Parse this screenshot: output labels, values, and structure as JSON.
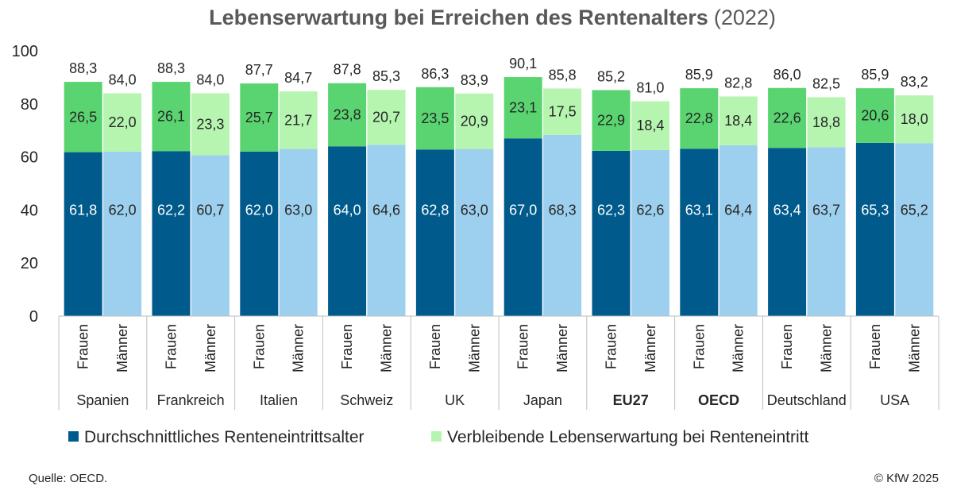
{
  "chart_data": {
    "type": "bar",
    "stacked": true,
    "title": "Lebenserwartung bei Erreichen des Rentenalters",
    "title_year": "(2022)",
    "ylim": [
      0,
      100
    ],
    "yticks": [
      0,
      20,
      40,
      60,
      80,
      100
    ],
    "groups": [
      "Spanien",
      "Frankreich",
      "Italien",
      "Schweiz",
      "UK",
      "Japan",
      "EU27",
      "OECD",
      "Deutschland",
      "USA"
    ],
    "bold_groups": [
      "EU27",
      "OECD"
    ],
    "subcategories": [
      "Frauen",
      "Männer"
    ],
    "series": [
      {
        "name": "Durchschnittliches Renteneintrittsalter",
        "values": [
          [
            61.8,
            62.0
          ],
          [
            62.2,
            60.7
          ],
          [
            62.0,
            63.0
          ],
          [
            64.0,
            64.6
          ],
          [
            62.8,
            63.0
          ],
          [
            67.0,
            68.3
          ],
          [
            62.3,
            62.6
          ],
          [
            63.1,
            64.4
          ],
          [
            63.4,
            63.7
          ],
          [
            65.3,
            65.2
          ]
        ],
        "labels": [
          [
            "61,8",
            "62,0"
          ],
          [
            "62,2",
            "60,7"
          ],
          [
            "62,0",
            "63,0"
          ],
          [
            "64,0",
            "64,6"
          ],
          [
            "62,8",
            "63,0"
          ],
          [
            "67,0",
            "68,3"
          ],
          [
            "62,3",
            "62,6"
          ],
          [
            "63,1",
            "64,4"
          ],
          [
            "63,4",
            "63,7"
          ],
          [
            "65,3",
            "65,2"
          ]
        ]
      },
      {
        "name": "Verbleibende Lebenserwartung bei Renteneintritt",
        "values": [
          [
            26.5,
            22.0
          ],
          [
            26.1,
            23.3
          ],
          [
            25.7,
            21.7
          ],
          [
            23.8,
            20.7
          ],
          [
            23.5,
            20.9
          ],
          [
            23.1,
            17.5
          ],
          [
            22.9,
            18.4
          ],
          [
            22.8,
            18.4
          ],
          [
            22.6,
            18.8
          ],
          [
            20.6,
            18.0
          ]
        ],
        "labels": [
          [
            "26,5",
            "22,0"
          ],
          [
            "26,1",
            "23,3"
          ],
          [
            "25,7",
            "21,7"
          ],
          [
            "23,8",
            "20,7"
          ],
          [
            "23,5",
            "20,9"
          ],
          [
            "23,1",
            "17,5"
          ],
          [
            "22,9",
            "18,4"
          ],
          [
            "22,8",
            "18,4"
          ],
          [
            "22,6",
            "18,8"
          ],
          [
            "20,6",
            "18,0"
          ]
        ]
      }
    ],
    "totals": [
      [
        "88,3",
        "84,0"
      ],
      [
        "88,3",
        "84,0"
      ],
      [
        "87,7",
        "84,7"
      ],
      [
        "87,8",
        "85,3"
      ],
      [
        "86,3",
        "83,9"
      ],
      [
        "90,1",
        "85,8"
      ],
      [
        "85,2",
        "81,0"
      ],
      [
        "85,9",
        "82,8"
      ],
      [
        "86,0",
        "82,5"
      ],
      [
        "85,9",
        "83,2"
      ]
    ],
    "colors": {
      "frauen_base": "#005a8c",
      "maenner_base": "#9dd0ee",
      "frauen_top": "#5ad470",
      "maenner_top": "#b6f5b0",
      "legend_base": "#005a8c",
      "legend_top": "#b6f5b0"
    }
  },
  "footer": {
    "source": "Quelle: OECD.",
    "copyright": "© KfW 2025"
  }
}
